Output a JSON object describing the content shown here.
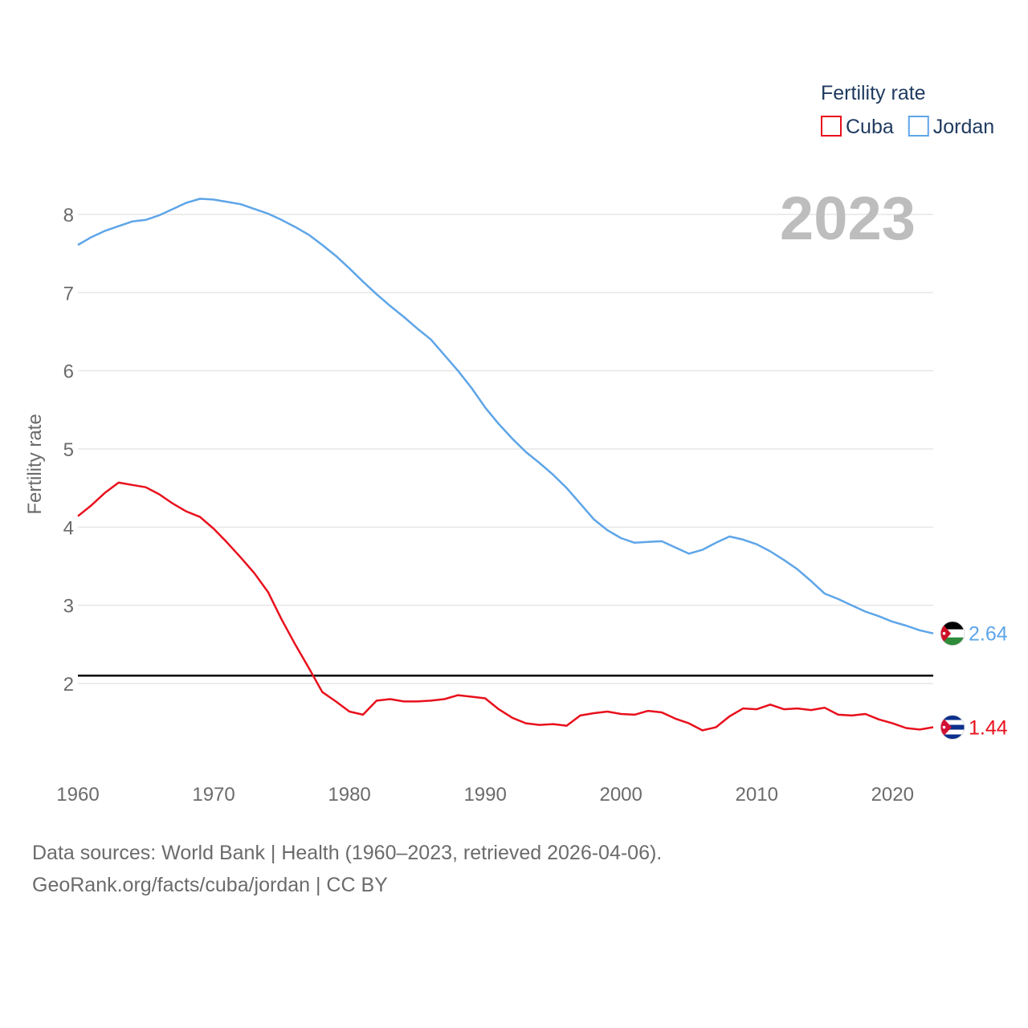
{
  "chart_data": {
    "type": "line",
    "title": "",
    "legend_title": "Fertility rate",
    "legend_position": "top-right",
    "ylabel": "Fertility rate",
    "xlabel": "",
    "year_label": "2023",
    "xlim": [
      1960,
      2023
    ],
    "ylim": [
      1,
      8.6
    ],
    "x_ticks": [
      1960,
      1970,
      1980,
      1990,
      2000,
      2010,
      2020
    ],
    "y_ticks": [
      2,
      3,
      4,
      5,
      6,
      7,
      8
    ],
    "reference_line": 2.1,
    "x": [
      1960,
      1961,
      1962,
      1963,
      1964,
      1965,
      1966,
      1967,
      1968,
      1969,
      1970,
      1971,
      1972,
      1973,
      1974,
      1975,
      1976,
      1977,
      1978,
      1979,
      1980,
      1981,
      1982,
      1983,
      1984,
      1985,
      1986,
      1987,
      1988,
      1989,
      1990,
      1991,
      1992,
      1993,
      1994,
      1995,
      1996,
      1997,
      1998,
      1999,
      2000,
      2001,
      2002,
      2003,
      2004,
      2005,
      2006,
      2007,
      2008,
      2009,
      2010,
      2011,
      2012,
      2013,
      2014,
      2015,
      2016,
      2017,
      2018,
      2019,
      2020,
      2021,
      2022,
      2023
    ],
    "series": [
      {
        "name": "Cuba",
        "color": "#e8101c",
        "end_label": "1.44",
        "values": [
          4.14,
          4.28,
          4.44,
          4.57,
          4.54,
          4.51,
          4.42,
          4.3,
          4.2,
          4.13,
          3.98,
          3.8,
          3.61,
          3.41,
          3.17,
          2.82,
          2.5,
          2.2,
          1.89,
          1.77,
          1.64,
          1.6,
          1.78,
          1.8,
          1.77,
          1.77,
          1.78,
          1.8,
          1.85,
          1.83,
          1.81,
          1.67,
          1.56,
          1.49,
          1.47,
          1.48,
          1.46,
          1.59,
          1.62,
          1.64,
          1.61,
          1.6,
          1.65,
          1.63,
          1.55,
          1.49,
          1.4,
          1.44,
          1.58,
          1.68,
          1.67,
          1.73,
          1.67,
          1.68,
          1.66,
          1.69,
          1.6,
          1.59,
          1.61,
          1.54,
          1.49,
          1.43,
          1.41,
          1.44
        ]
      },
      {
        "name": "Jordan",
        "color": "#5ea5e8",
        "end_label": "2.64",
        "values": [
          7.61,
          7.71,
          7.79,
          7.85,
          7.91,
          7.93,
          7.99,
          8.07,
          8.15,
          8.2,
          8.19,
          8.16,
          8.13,
          8.07,
          8.01,
          7.93,
          7.84,
          7.74,
          7.61,
          7.47,
          7.31,
          7.14,
          6.98,
          6.83,
          6.69,
          6.54,
          6.4,
          6.2,
          6.0,
          5.78,
          5.53,
          5.32,
          5.13,
          4.96,
          4.82,
          4.67,
          4.5,
          4.3,
          4.1,
          3.96,
          3.86,
          3.8,
          3.81,
          3.82,
          3.74,
          3.66,
          3.71,
          3.8,
          3.88,
          3.84,
          3.78,
          3.69,
          3.58,
          3.46,
          3.31,
          3.15,
          3.08,
          3.0,
          2.92,
          2.86,
          2.79,
          2.74,
          2.68,
          2.64
        ]
      }
    ]
  },
  "footer": {
    "line1": "Data sources: World Bank | Health (1960–2023, retrieved 2026-04-06).",
    "line2": "GeoRank.org/facts/cuba/jordan | CC BY"
  }
}
